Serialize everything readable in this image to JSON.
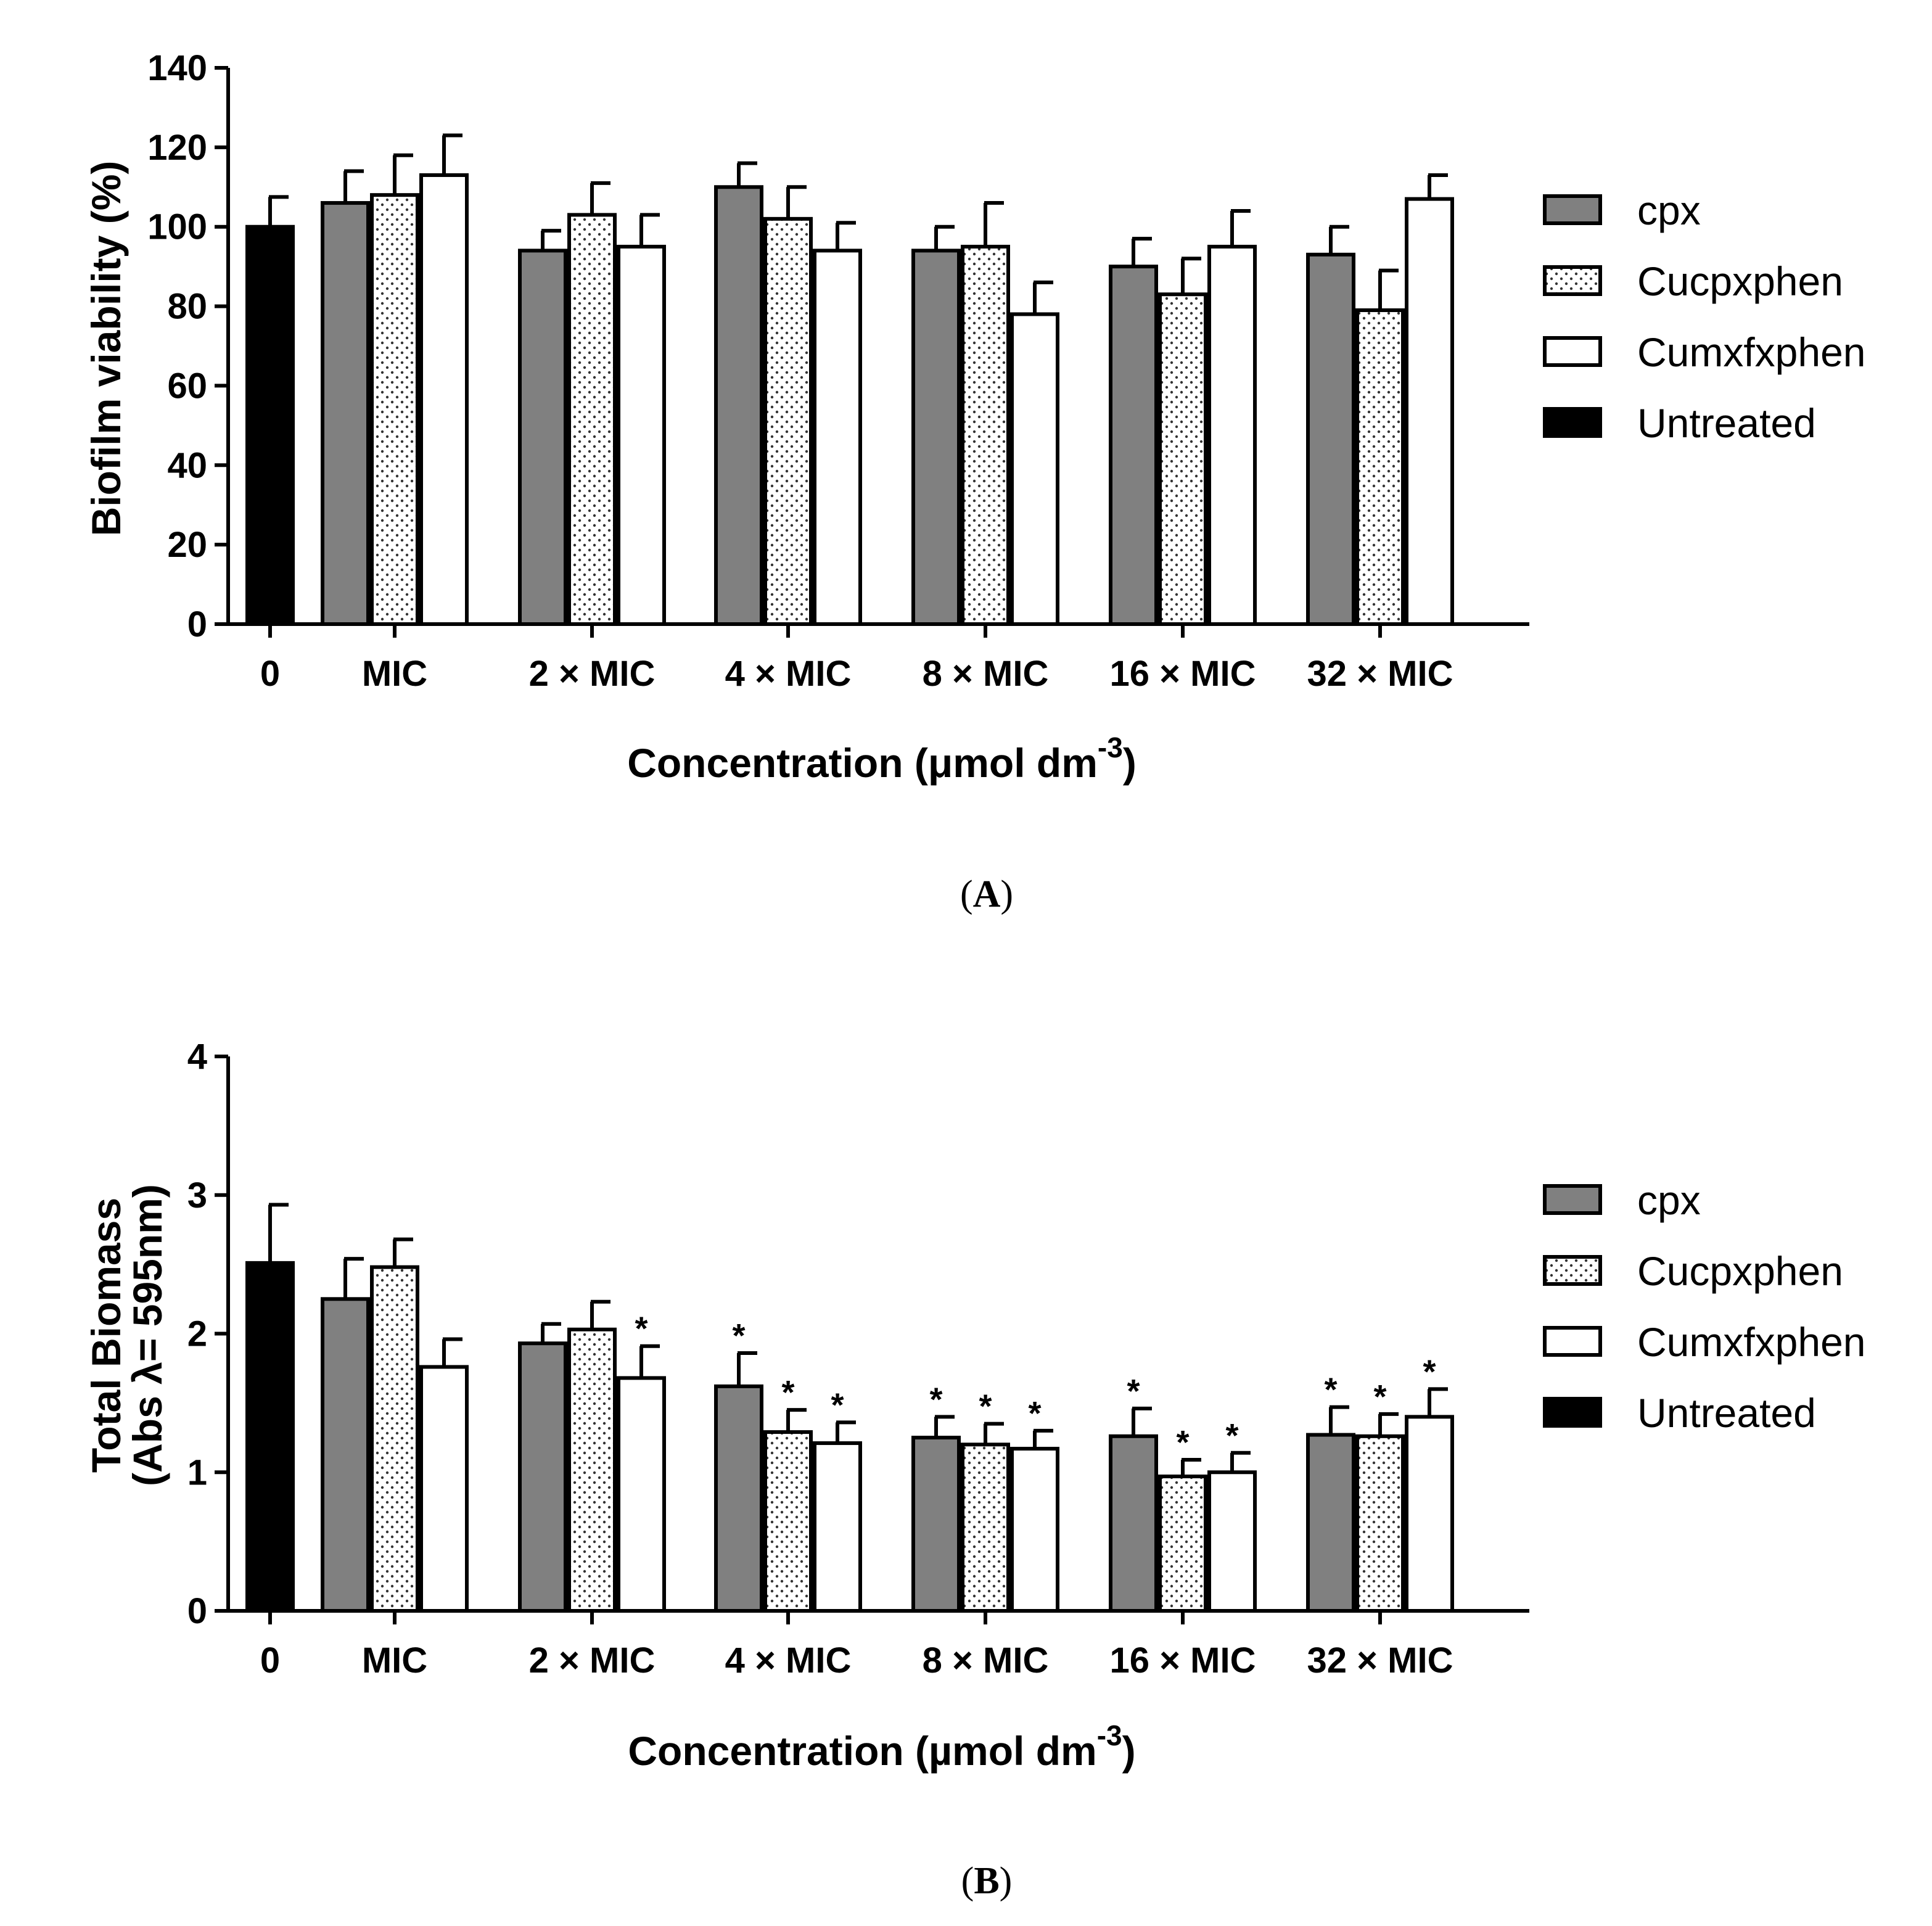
{
  "chart_data": [
    {
      "type": "bar",
      "panel_label": "A",
      "categories": [
        "0",
        "MIC",
        "2 × MIC",
        "4 × MIC",
        "8 ×  MIC",
        "16 ×  MIC",
        "32 × MIC"
      ],
      "series": [
        {
          "name": "cpx",
          "fill": "#808080",
          "pattern": "solid",
          "values": [
            null,
            106,
            94,
            110,
            94,
            90,
            93
          ],
          "errors": [
            null,
            8,
            5,
            6,
            6,
            7,
            7
          ],
          "stars": [
            false,
            false,
            false,
            false,
            false,
            false,
            false
          ]
        },
        {
          "name": "Cucpxphen",
          "fill": "#ffffff",
          "pattern": "dots",
          "values": [
            null,
            108,
            103,
            102,
            95,
            83,
            79
          ],
          "errors": [
            null,
            10,
            8,
            8,
            11,
            9,
            10
          ],
          "stars": [
            false,
            false,
            false,
            false,
            false,
            false,
            false
          ]
        },
        {
          "name": "Cumxfxphen",
          "fill": "#ffffff",
          "pattern": "none",
          "values": [
            null,
            113,
            95,
            94,
            78,
            95,
            107
          ],
          "errors": [
            null,
            10,
            8,
            7,
            8,
            9,
            6
          ],
          "stars": [
            false,
            false,
            false,
            false,
            false,
            false,
            false
          ]
        },
        {
          "name": "Untreated",
          "fill": "#000000",
          "pattern": "solid",
          "values": [
            100,
            null,
            null,
            null,
            null,
            null,
            null
          ],
          "errors": [
            7.5,
            null,
            null,
            null,
            null,
            null,
            null
          ],
          "stars": [
            false,
            false,
            false,
            false,
            false,
            false,
            false
          ]
        }
      ],
      "ylim": [
        0,
        140
      ],
      "yticks": [
        0,
        20,
        40,
        60,
        80,
        100,
        120,
        140
      ],
      "ylabel": "Biofilm viability (%)",
      "ylabel_sub": "",
      "xlabel_main": "Concentration (μmol dm",
      "xlabel_sup": "-3",
      "xlabel_end": ")",
      "legend_position": "right"
    },
    {
      "type": "bar",
      "panel_label": "B",
      "categories": [
        "0",
        "MIC",
        "2 × MIC",
        "4 × MIC",
        "8 × MIC",
        "16 × MIC",
        "32 × MIC"
      ],
      "series": [
        {
          "name": "cpx",
          "fill": "#808080",
          "pattern": "solid",
          "values": [
            null,
            2.25,
            1.93,
            1.62,
            1.25,
            1.26,
            1.27
          ],
          "errors": [
            null,
            0.29,
            0.14,
            0.24,
            0.15,
            0.2,
            0.2
          ],
          "stars": [
            false,
            false,
            false,
            true,
            true,
            true,
            true
          ]
        },
        {
          "name": "Cucpxphen",
          "fill": "#ffffff",
          "pattern": "dots",
          "values": [
            null,
            2.48,
            2.03,
            1.29,
            1.2,
            0.97,
            1.26
          ],
          "errors": [
            null,
            0.2,
            0.2,
            0.16,
            0.15,
            0.12,
            0.16
          ],
          "stars": [
            false,
            false,
            false,
            true,
            true,
            true,
            true
          ]
        },
        {
          "name": "Cumxfxphen",
          "fill": "#ffffff",
          "pattern": "none",
          "values": [
            null,
            1.76,
            1.68,
            1.21,
            1.17,
            1.0,
            1.4
          ],
          "errors": [
            null,
            0.2,
            0.23,
            0.15,
            0.13,
            0.14,
            0.2
          ],
          "stars": [
            false,
            false,
            true,
            true,
            true,
            true,
            true
          ]
        },
        {
          "name": "Untreated",
          "fill": "#000000",
          "pattern": "solid",
          "values": [
            2.51,
            null,
            null,
            null,
            null,
            null,
            null
          ],
          "errors": [
            0.42,
            null,
            null,
            null,
            null,
            null,
            null
          ],
          "stars": [
            false,
            false,
            false,
            false,
            false,
            false,
            false
          ]
        }
      ],
      "ylim": [
        0,
        4
      ],
      "yticks": [
        0,
        1,
        2,
        3,
        4
      ],
      "ylabel": "Total Biomass",
      "ylabel_sub": "(Abs λ= 595nm)",
      "xlabel_main": "Concentration (µmol dm",
      "xlabel_sup": "-3",
      "xlabel_end": ")",
      "legend_position": "right"
    }
  ],
  "significance_marker": "*"
}
